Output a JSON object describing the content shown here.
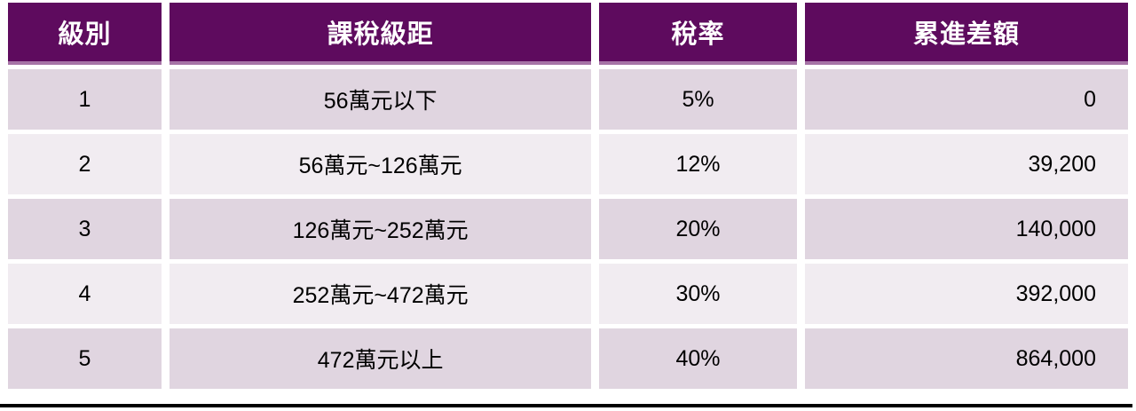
{
  "colors": {
    "header_bg": "#5e0b5e",
    "header_text": "#ffffff",
    "header_bottom_border": "#a673a6",
    "row_odd_bg": "#e0d5e0",
    "row_even_bg": "#f1ecf1",
    "body_text": "#000000",
    "cell_gap": "#ffffff",
    "bottom_divider": "#000000"
  },
  "chart_data": {
    "type": "table",
    "columns": [
      "級別",
      "課稅級距",
      "稅率",
      "累進差額"
    ],
    "rows": [
      [
        "1",
        "56萬元以下",
        "5%",
        "0"
      ],
      [
        "2",
        "56萬元~126萬元",
        "12%",
        "39,200"
      ],
      [
        "3",
        "126萬元~252萬元",
        "20%",
        "140,000"
      ],
      [
        "4",
        "252萬元~472萬元",
        "30%",
        "392,000"
      ],
      [
        "5",
        "472萬元以上",
        "40%",
        "864,000"
      ]
    ],
    "layout": {
      "column_alignments": [
        "center",
        "center",
        "center",
        "right"
      ],
      "row_banding": [
        "odd-dark",
        "even-light"
      ],
      "grid": "white gaps between cells",
      "legend": "none",
      "title": ""
    }
  }
}
